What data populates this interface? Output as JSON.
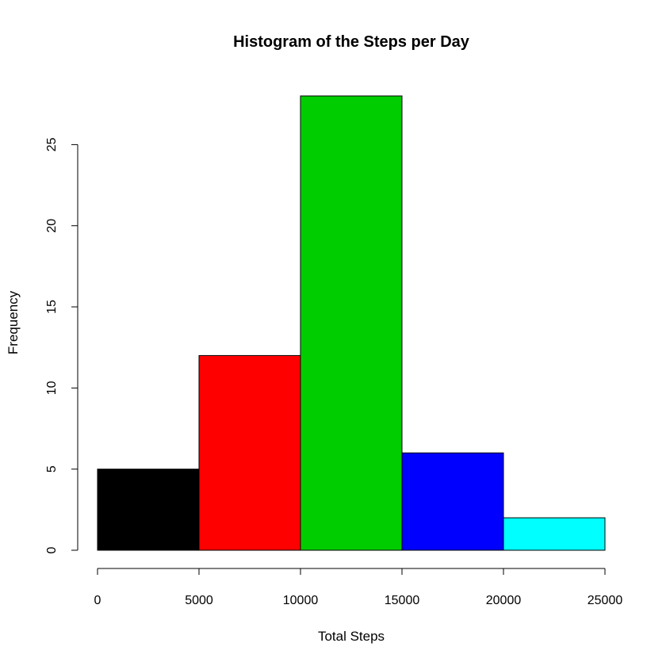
{
  "chart_data": {
    "type": "bar",
    "title": "Histogram of the Steps per Day",
    "xlabel": "Total Steps",
    "ylabel": "Frequency",
    "bin_edges": [
      0,
      5000,
      10000,
      15000,
      20000,
      25000
    ],
    "values": [
      5,
      12,
      28,
      6,
      2
    ],
    "colors": [
      "#000000",
      "#ff0000",
      "#00cd00",
      "#0000ff",
      "#00ffff"
    ],
    "xlim": [
      0,
      25000
    ],
    "ylim": [
      0,
      28
    ],
    "xticks": [
      "0",
      "5000",
      "10000",
      "15000",
      "20000",
      "25000"
    ],
    "yticks": [
      "0",
      "5",
      "10",
      "15",
      "20",
      "25"
    ],
    "grid": false,
    "legend": "none"
  }
}
